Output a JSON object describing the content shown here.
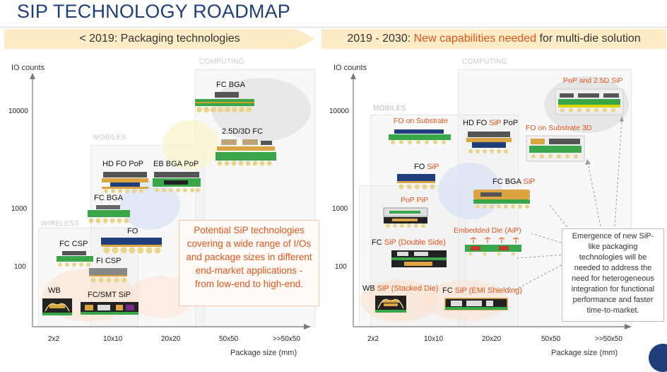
{
  "title": "SIP TECHNOLOGY ROADMAP",
  "banners": {
    "left": "< 2019: Packaging technologies",
    "right_pre": "2019 - 2030: ",
    "right_accent": "New capabilities needed",
    "right_post": " for multi-die solution"
  },
  "axes": {
    "y_label": "IO counts",
    "x_label": "Package size (mm)",
    "y_ticks": [
      "10000",
      "1000",
      "100"
    ],
    "x_ticks": [
      "2x2",
      "10x10",
      "20x20",
      "50x50",
      ">>50x50"
    ]
  },
  "segments": {
    "computing": "COMPUTING",
    "mobiles": "MOBILES",
    "wireless": "WIRELESS"
  },
  "left_packages": {
    "fc_bga_top": "FC BGA",
    "fc_25d": "2.5D/3D FC",
    "hd_fo_pop": "HD FO PoP",
    "eb_bga_pop": "EB BGA PoP",
    "fc_bga": "FC BGA",
    "fo": "FO",
    "fc_csp": "FC CSP",
    "fi_csp": "FI CSP",
    "wb": "WB",
    "fc_smt_sip": "FC/SMT SiP"
  },
  "left_callout": "Potential SiP technologies covering a wide range of I/Os and package sizes in different end-market applications - from low-end to high-end.",
  "right_packages": {
    "pop_25d": "PoP and 2.5D SiP",
    "fo_substrate": "FO on Substrate",
    "hd_fo_sip_pop_a": "HD FO ",
    "hd_fo_sip_pop_b": "SiP",
    "hd_fo_sip_pop_c": " PoP",
    "fo_substrate_3d": "FO on Substrate 3D",
    "fo_sip_a": "FO ",
    "fo_sip_b": "SiP",
    "fc_bga_sip_a": "FC BGA ",
    "fc_bga_sip_b": "SiP",
    "pop_pip": "PoP PiP",
    "embedded_die": "Embedded Die (AiP)",
    "fc_sip_ds_a": "FC ",
    "fc_sip_ds_b": "SiP (Double Side)",
    "wb_sip_a": "WB ",
    "wb_sip_b": "SiP (Stacked Die)",
    "fc_sip_emi_a": "FC ",
    "fc_sip_emi_b": "SiP (EMI Shielding)"
  },
  "right_note": "Emergence of new SiP-like packaging technologies will be needed to address the need for heterogeneous integration for functional performance and faster time-to-market.",
  "colors": {
    "accent": "#e5541b",
    "title": "#1f3f7a",
    "banner": "#fdecc6",
    "substrate": "#3aa64a",
    "die": "#333333",
    "bump": "#e8d48a"
  }
}
